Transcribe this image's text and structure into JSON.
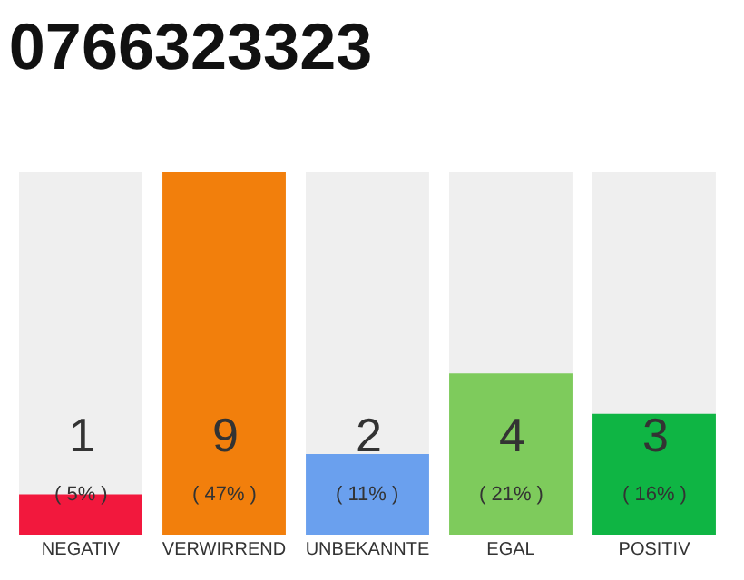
{
  "chart_data": {
    "type": "bar",
    "title": "0766323323",
    "categories": [
      "NEGATIV",
      "VERWIRREND",
      "UNBEKANNTE",
      "EGAL",
      "POSITIV"
    ],
    "values": [
      1,
      9,
      2,
      4,
      3
    ],
    "colors": [
      "#f2183d",
      "#f27f0c",
      "#6aa0ee",
      "#7ecb5c",
      "#0fb544"
    ],
    "ylim": [
      0,
      9
    ],
    "tick_labels": "x",
    "data_labels": true,
    "annotations": [
      "( 5% )",
      "( 47% )",
      "( 11% )",
      "( 21% )",
      "( 16% )"
    ]
  }
}
